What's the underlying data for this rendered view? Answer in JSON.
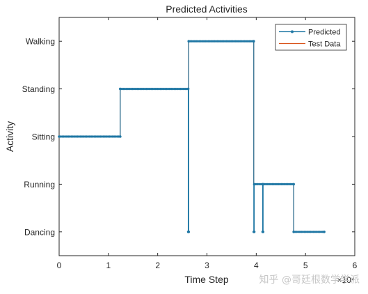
{
  "chart_data": {
    "type": "line",
    "title": "Predicted Activities",
    "xlabel": "Time Step",
    "ylabel": "Activity",
    "x_exponent_label": "×10⁴",
    "xlim": [
      0,
      6
    ],
    "xticks": [
      "0",
      "1",
      "2",
      "3",
      "4",
      "5",
      "6"
    ],
    "categories": [
      "Dancing",
      "Running",
      "Sitting",
      "Standing",
      "Walking"
    ],
    "ylim": [
      0.5,
      5.5
    ],
    "legend_position": "top-right",
    "grid": false,
    "series": [
      {
        "name": "Predicted",
        "color": "#1f77a4",
        "marker": "dot",
        "x": [
          0,
          1.24,
          1.24,
          2.62,
          2.62,
          2.63,
          2.63,
          3.95,
          3.95,
          3.96,
          3.96,
          4.13,
          4.13,
          4.14,
          4.14,
          4.76,
          4.76,
          5.38
        ],
        "y": [
          "Sitting",
          "Sitting",
          "Standing",
          "Standing",
          "Dancing",
          "Dancing",
          "Walking",
          "Walking",
          "Dancing",
          "Dancing",
          "Running",
          "Running",
          "Dancing",
          "Dancing",
          "Running",
          "Running",
          "Dancing",
          "Dancing"
        ]
      },
      {
        "name": "Test Data",
        "color": "#d95319",
        "x": [
          0,
          1.24,
          1.24,
          2.63,
          2.63,
          3.95,
          3.95,
          4.76,
          4.76,
          5.38
        ],
        "y": [
          "Sitting",
          "Sitting",
          "Standing",
          "Standing",
          "Walking",
          "Walking",
          "Running",
          "Running",
          "Dancing",
          "Dancing"
        ]
      }
    ]
  },
  "watermark": "知乎 @哥廷根数学学派"
}
